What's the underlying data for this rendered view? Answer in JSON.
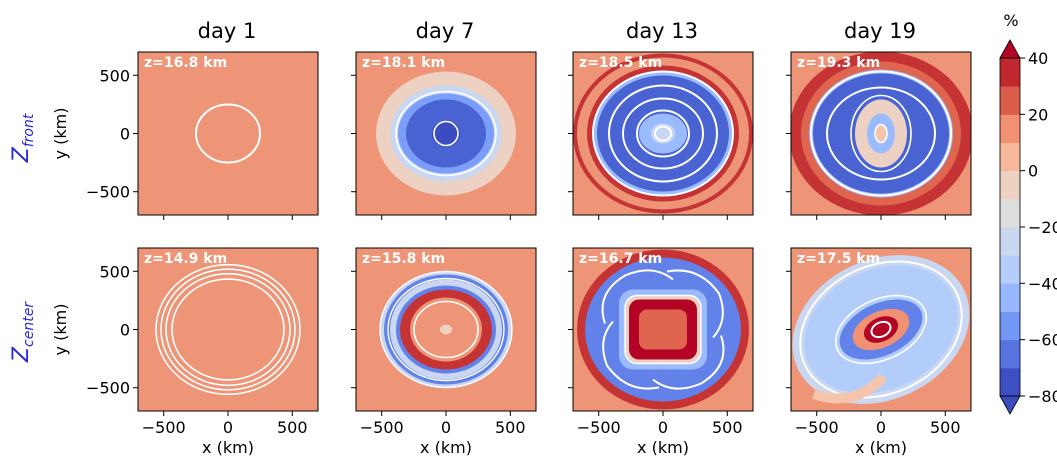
{
  "chart_data": {
    "type": "heatmap",
    "description_type": "grid of 8 filled-contour panels with shared colorbar",
    "columns": [
      "day 1",
      "day 7",
      "day 13",
      "day 19"
    ],
    "rows": [
      {
        "label": "Z",
        "subscript": "front"
      },
      {
        "label": "Z",
        "subscript": "center"
      }
    ],
    "panels": [
      [
        {
          "z_label": "z=16.8 km"
        },
        {
          "z_label": "z=18.1 km"
        },
        {
          "z_label": "z=18.5 km"
        },
        {
          "z_label": "z=19.3 km"
        }
      ],
      [
        {
          "z_label": "z=14.9 km"
        },
        {
          "z_label": "z=15.8 km"
        },
        {
          "z_label": "z=16.7 km"
        },
        {
          "z_label": "z=17.5 km"
        }
      ]
    ],
    "xlabel": "x (km)",
    "ylabel": "y (km)",
    "xlim": [
      -700,
      700
    ],
    "ylim": [
      -700,
      700
    ],
    "xticks": [
      -500,
      0,
      500
    ],
    "yticks": [
      -500,
      0,
      500
    ],
    "xtick_labels": [
      "−500",
      "0",
      "500"
    ],
    "ytick_labels": [
      "−500",
      "0",
      "500"
    ],
    "colorbar": {
      "unit": "%",
      "levels": [
        -80,
        -70,
        -60,
        -50,
        -40,
        -30,
        -20,
        -10,
        0,
        10,
        20,
        30,
        40
      ],
      "tick_values": [
        40,
        20,
        0,
        -20,
        -40,
        -60,
        -80
      ],
      "tick_labels": [
        "40",
        "20",
        "0",
        "−20",
        "−40",
        "−60",
        "−80"
      ],
      "extend": "both",
      "cmap": "coolwarm"
    }
  }
}
